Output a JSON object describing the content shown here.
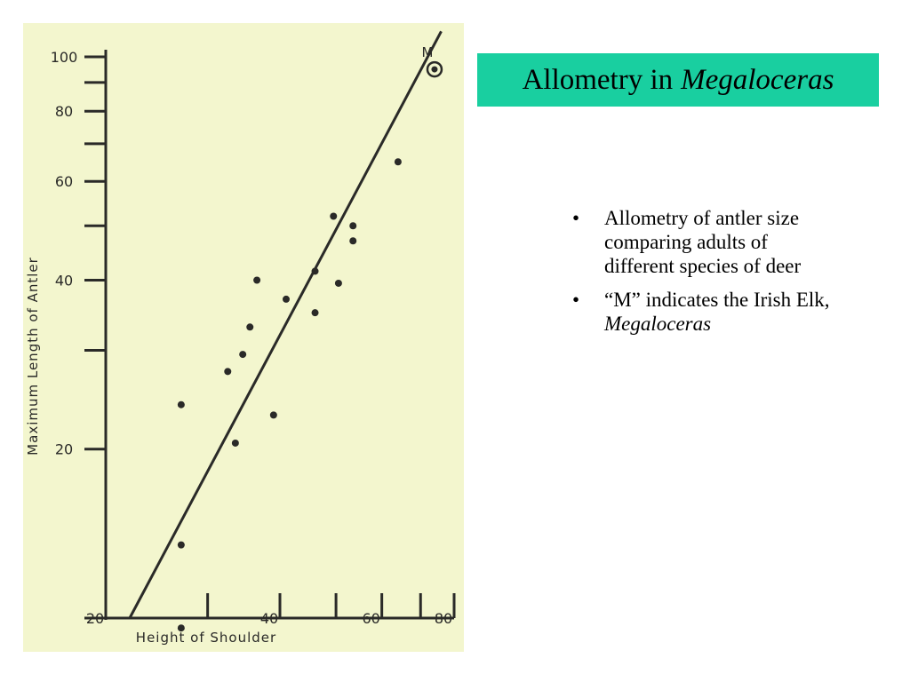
{
  "slide": {
    "title_plain": "Allometry in",
    "title_italic": "Megaloceras",
    "bullets": [
      {
        "text": "Allometry of antler size comparing adults of different species of deer",
        "italic": ""
      },
      {
        "text": "“M” indicates the Irish Elk,",
        "italic": "Megaloceras"
      }
    ]
  },
  "chart_data": {
    "type": "scatter",
    "xlabel": "Height of Shoulder",
    "ylabel": "Maximum Length of Antler",
    "x_scale": "log",
    "y_scale": "log",
    "xlim": [
      20,
      80
    ],
    "ylim": [
      10,
      100
    ],
    "x_tick_labels": [
      20,
      40,
      60,
      80
    ],
    "x_minor_ticks": [
      30,
      50,
      70
    ],
    "y_tick_labels": [
      20,
      40,
      60,
      80,
      100
    ],
    "y_minor_ticks": [
      10,
      30,
      50,
      70,
      90
    ],
    "grid": false,
    "points": [
      {
        "x": 27,
        "y": 24
      },
      {
        "x": 27,
        "y": 13.5
      },
      {
        "x": 27,
        "y": 9.6
      },
      {
        "x": 32.5,
        "y": 27.5
      },
      {
        "x": 33.5,
        "y": 20.5
      },
      {
        "x": 34.5,
        "y": 29.5
      },
      {
        "x": 35.5,
        "y": 33
      },
      {
        "x": 36.5,
        "y": 40
      },
      {
        "x": 39,
        "y": 23
      },
      {
        "x": 41,
        "y": 37
      },
      {
        "x": 46,
        "y": 41.5
      },
      {
        "x": 46,
        "y": 35
      },
      {
        "x": 49.5,
        "y": 52
      },
      {
        "x": 50.5,
        "y": 39.5
      },
      {
        "x": 53.5,
        "y": 50
      },
      {
        "x": 53.5,
        "y": 47
      },
      {
        "x": 64,
        "y": 65
      },
      {
        "x": 74,
        "y": 95,
        "label": "M",
        "highlight": true
      }
    ],
    "fit_line": {
      "x": [
        22,
        76
      ],
      "y": [
        10,
        111
      ]
    },
    "colors": {
      "background": "#f3f6ce",
      "ink": "#2a2a28"
    }
  }
}
